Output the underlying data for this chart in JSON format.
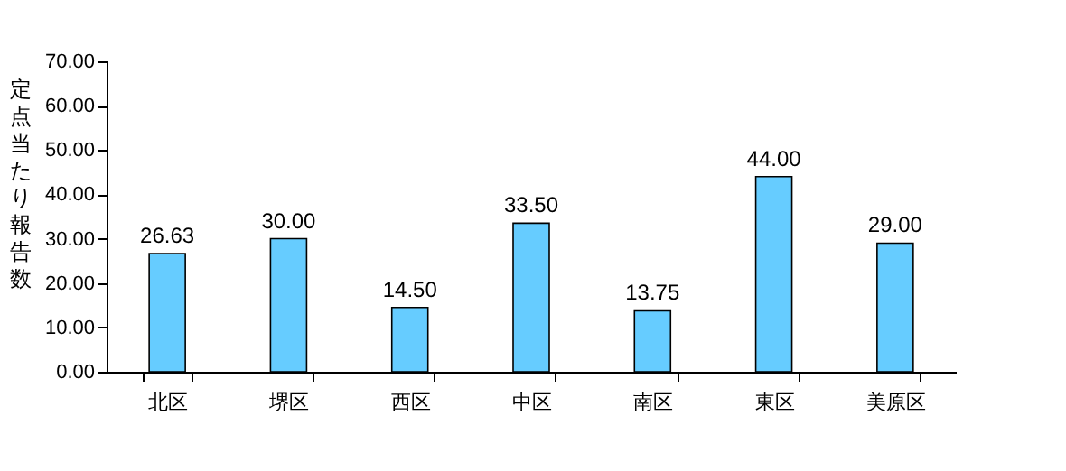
{
  "chart_data": {
    "type": "bar",
    "ylabel": "定点当たり報告数",
    "categories": [
      "北区",
      "堺区",
      "西区",
      "中区",
      "南区",
      "東区",
      "美原区"
    ],
    "values": [
      26.63,
      30.0,
      14.5,
      33.5,
      13.75,
      44.0,
      29.0
    ],
    "value_labels": [
      "26.63",
      "30.00",
      "14.50",
      "33.50",
      "13.75",
      "44.00",
      "29.00"
    ],
    "color": "#66ccff",
    "ylim": [
      0,
      70
    ],
    "yticks": [
      {
        "value": 0,
        "label": "0.00"
      },
      {
        "value": 10,
        "label": "10.00"
      },
      {
        "value": 20,
        "label": "20.00"
      },
      {
        "value": 30,
        "label": "30.00"
      },
      {
        "value": 40,
        "label": "40.00"
      },
      {
        "value": 50,
        "label": "50.00"
      },
      {
        "value": 60,
        "label": "60.00"
      },
      {
        "value": 70,
        "label": "70.00"
      }
    ],
    "grid": false
  }
}
